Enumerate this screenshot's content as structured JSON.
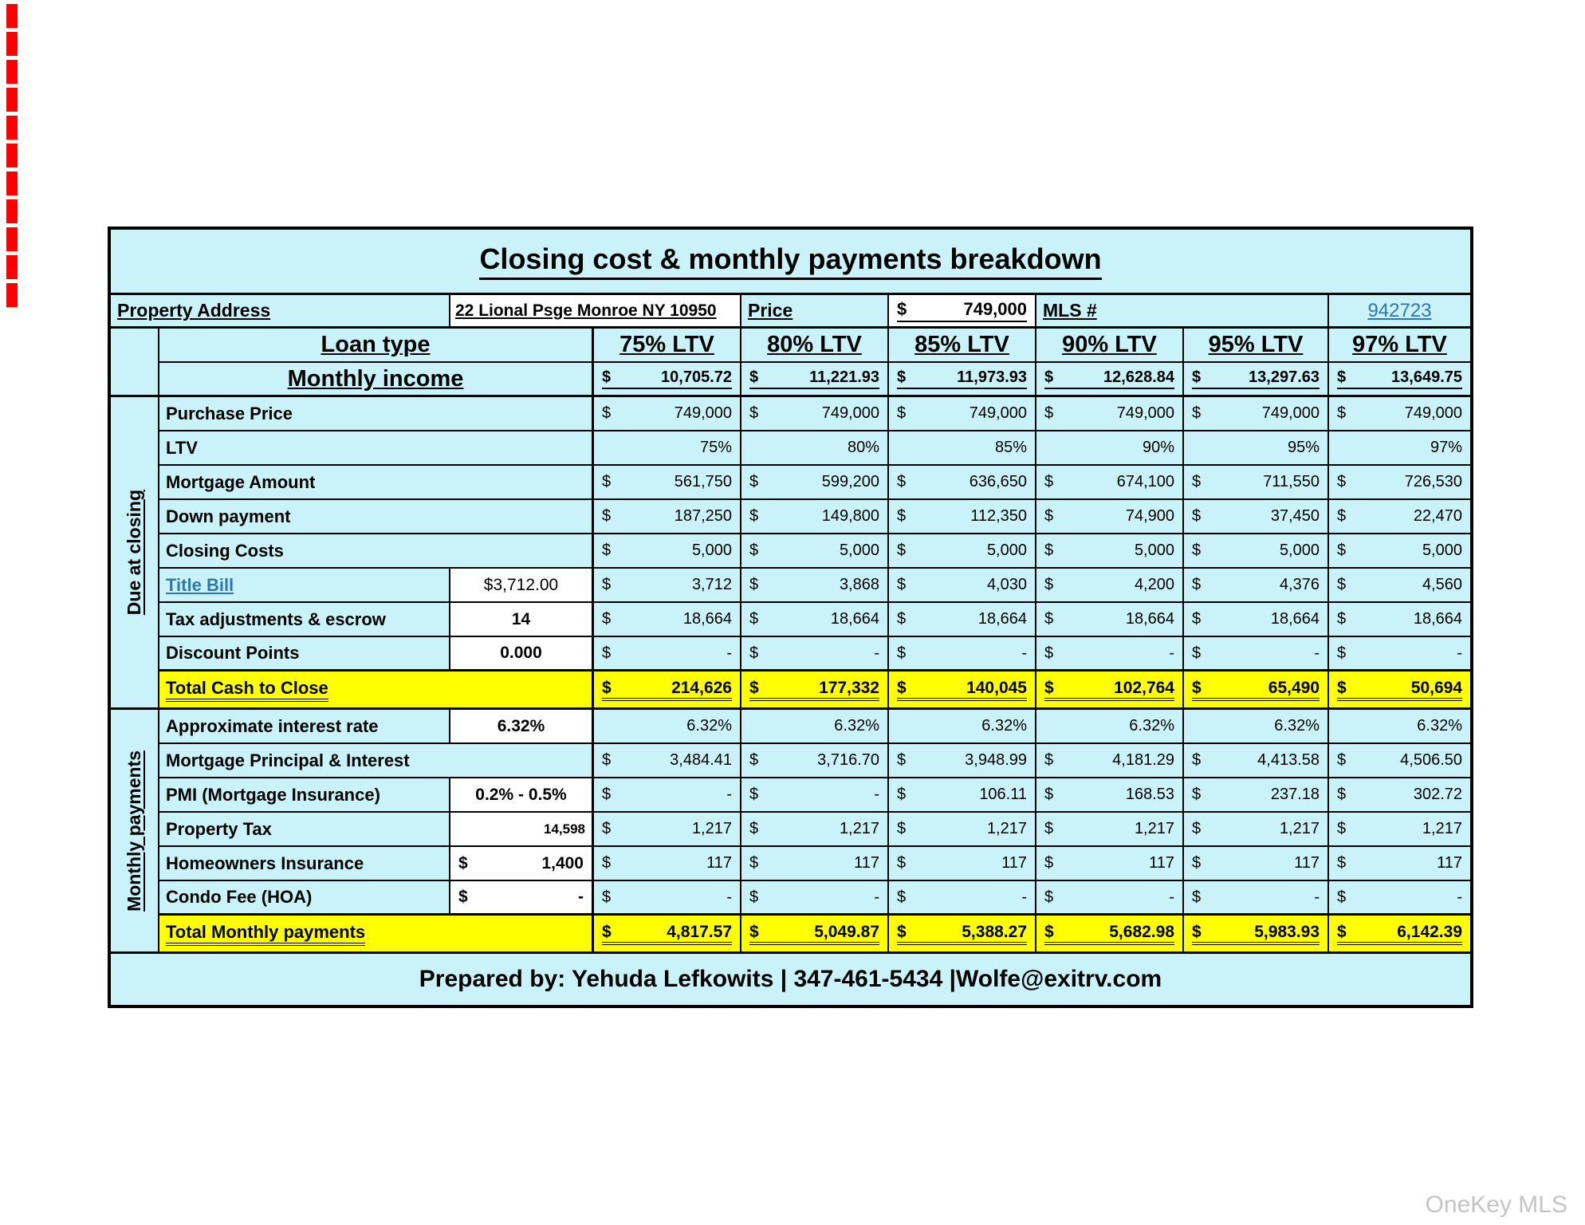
{
  "title": "Closing cost & monthly payments breakdown",
  "currency": "$",
  "property_row": {
    "address_label": "Property Address",
    "address_value": "22 Lional Psge Monroe NY 10950",
    "price_label": "Price",
    "price_value": "749,000",
    "mls_label": "MLS #",
    "mls_number": "942723"
  },
  "header": {
    "loan_type_label": "Loan type",
    "monthly_income_label": "Monthly income",
    "ltv_columns": [
      "75% LTV",
      "80% LTV",
      "85% LTV",
      "90% LTV",
      "95% LTV",
      "97% LTV"
    ],
    "monthly_income_values": [
      "10,705.72",
      "11,221.93",
      "11,973.93",
      "12,628.84",
      "13,297.63",
      "13,649.75"
    ]
  },
  "sections": {
    "due_at_closing_label": "Due at closing",
    "monthly_payments_label": "Monthly payments"
  },
  "grid_rows": [
    {
      "key": "purchase_price",
      "label": "Purchase Price",
      "type": "plain",
      "currency": true,
      "values": [
        "749,000",
        "749,000",
        "749,000",
        "749,000",
        "749,000",
        "749,000"
      ]
    },
    {
      "key": "ltv",
      "label": "LTV",
      "type": "plain",
      "currency": false,
      "values": [
        "75%",
        "80%",
        "85%",
        "90%",
        "95%",
        "97%"
      ]
    },
    {
      "key": "mortgage_amount",
      "label": "Mortgage Amount",
      "type": "plain",
      "currency": true,
      "values": [
        "561,750",
        "599,200",
        "636,650",
        "674,100",
        "711,550",
        "726,530"
      ]
    },
    {
      "key": "down_payment",
      "label": "Down payment",
      "type": "plain",
      "currency": true,
      "values": [
        "187,250",
        "149,800",
        "112,350",
        "74,900",
        "37,450",
        "22,470"
      ]
    },
    {
      "key": "closing_costs",
      "label": "Closing Costs",
      "type": "plain",
      "currency": true,
      "values": [
        "5,000",
        "5,000",
        "5,000",
        "5,000",
        "5,000",
        "5,000"
      ]
    },
    {
      "key": "title_bill",
      "label": "Title Bill",
      "label_link": true,
      "type": "input",
      "input": "$3,712.00",
      "input_bold": false,
      "currency": true,
      "values": [
        "3,712",
        "3,868",
        "4,030",
        "4,200",
        "4,376",
        "4,560"
      ]
    },
    {
      "key": "tax_adjustments_escrow",
      "label": "Tax adjustments & escrow",
      "type": "input",
      "input": "14",
      "currency": true,
      "values": [
        "18,664",
        "18,664",
        "18,664",
        "18,664",
        "18,664",
        "18,664"
      ]
    },
    {
      "key": "discount_points",
      "label": "Discount Points",
      "type": "input",
      "input": "0.000",
      "currency": true,
      "values": [
        "-",
        "-",
        "-",
        "-",
        "-",
        "-"
      ]
    },
    {
      "key": "total_cash_to_close",
      "label": "Total Cash to Close",
      "type": "total",
      "currency": true,
      "values": [
        "214,626",
        "177,332",
        "140,045",
        "102,764",
        "65,490",
        "50,694"
      ]
    },
    {
      "key": "approximate_interest_rate",
      "label": "Approximate interest rate",
      "type": "input",
      "input": "6.32%",
      "currency": false,
      "values": [
        "6.32%",
        "6.32%",
        "6.32%",
        "6.32%",
        "6.32%",
        "6.32%"
      ]
    },
    {
      "key": "mortgage_principal_interest",
      "label": "Mortgage Principal & Interest",
      "type": "plain",
      "currency": true,
      "values": [
        "3,484.41",
        "3,716.70",
        "3,948.99",
        "4,181.29",
        "4,413.58",
        "4,506.50"
      ]
    },
    {
      "key": "pmi_mortgage_insurance",
      "label": "PMI (Mortgage Insurance)",
      "type": "input",
      "input": "0.2% - 0.5%",
      "currency": true,
      "values": [
        "-",
        "-",
        "106.11",
        "168.53",
        "237.18",
        "302.72"
      ]
    },
    {
      "key": "property_tax",
      "label": "Property Tax",
      "type": "input",
      "input": "14,598",
      "input_align": "right",
      "currency": true,
      "values": [
        "1,217",
        "1,217",
        "1,217",
        "1,217",
        "1,217",
        "1,217"
      ]
    },
    {
      "key": "homeowners_insurance",
      "label": "Homeowners Insurance",
      "type": "input",
      "input": "1,400",
      "input_money": true,
      "currency": true,
      "values": [
        "117",
        "117",
        "117",
        "117",
        "117",
        "117"
      ]
    },
    {
      "key": "condo_fee_hoa",
      "label": "Condo Fee (HOA)",
      "type": "input",
      "input": "-",
      "input_money": true,
      "currency": true,
      "values": [
        "-",
        "-",
        "-",
        "-",
        "-",
        "-"
      ]
    },
    {
      "key": "total_monthly_payments",
      "label": "Total Monthly payments",
      "type": "total",
      "currency": true,
      "values": [
        "4,817.57",
        "5,049.87",
        "5,388.27",
        "5,682.98",
        "5,983.93",
        "6,142.39"
      ]
    }
  ],
  "footer": {
    "prepared_by": "Prepared by: Yehuda Lefkowits | 347-461-5434 |Wolfe@exitrv.com"
  },
  "watermark": "OneKey MLS",
  "colors": {
    "table_bg": "#c9f3f9",
    "highlight_yellow": "#ffff00",
    "link_blue": "#2e75b6",
    "edge_red": "#ff0000",
    "watermark_gray": "#c4c4c4"
  }
}
